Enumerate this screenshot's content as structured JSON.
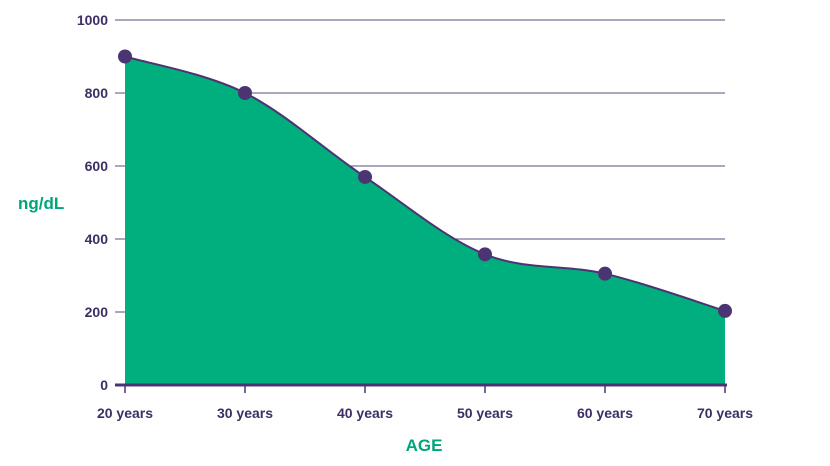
{
  "chart_data": {
    "type": "area",
    "title": "",
    "xlabel": "AGE",
    "ylabel": "ng/dL",
    "categories": [
      "20 years",
      "30 years",
      "40 years",
      "50 years",
      "60 years",
      "70 years"
    ],
    "values": [
      900,
      800,
      570,
      358,
      305,
      203
    ],
    "ylim": [
      0,
      1000
    ],
    "yticks": [
      "0",
      "200",
      "400",
      "600",
      "800",
      "1000"
    ],
    "grid": true,
    "smooth": true,
    "markers": true,
    "colors": {
      "fill": "#00ae7e",
      "line": "#4b3473",
      "marker": "#4b3473",
      "grid": "#5a4d7e",
      "tick_text": "#3d2f63",
      "axis_title": "#00a57a"
    }
  }
}
